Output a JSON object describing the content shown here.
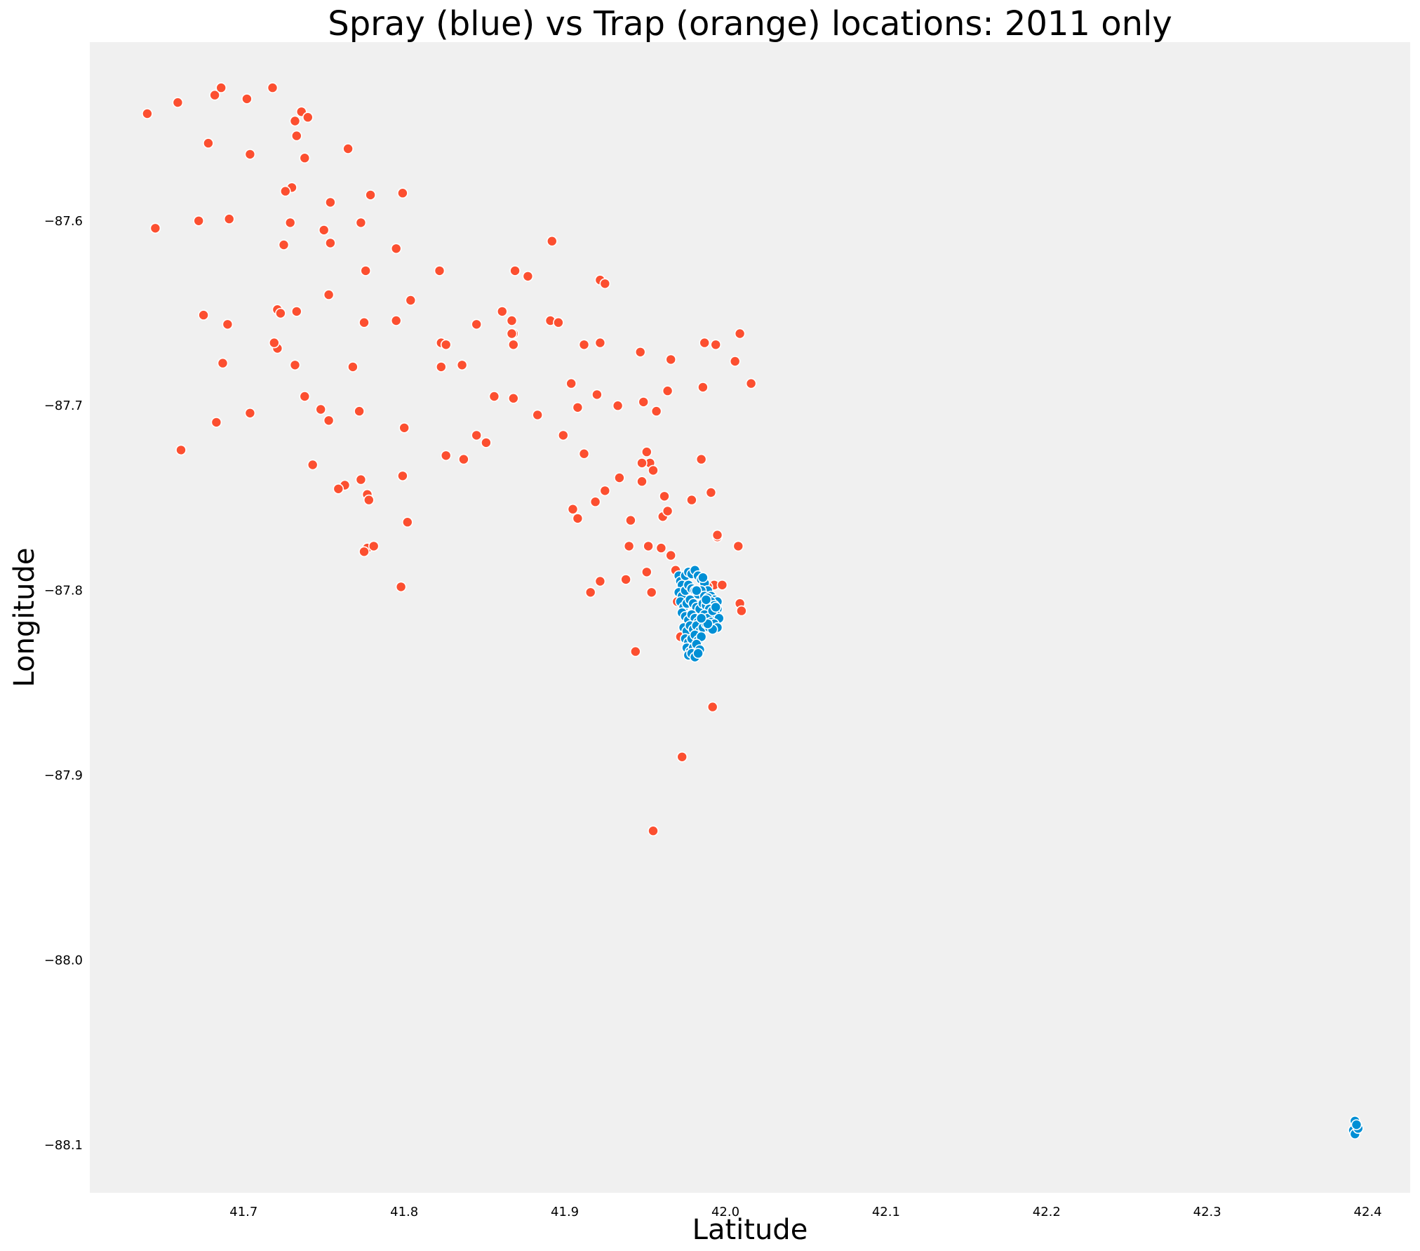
{
  "chart_data": {
    "type": "scatter",
    "title": "Spray (blue) vs Trap (orange) locations: 2011 only",
    "xlabel": "Latitude",
    "ylabel": "Longitude",
    "xlim": [
      41.6042,
      42.4264
    ],
    "ylim": [
      -88.1258,
      -87.5033
    ],
    "x_ticks": [
      41.7,
      41.8,
      41.9,
      42.0,
      42.1,
      42.2,
      42.3,
      42.4
    ],
    "x_tick_labels": [
      "41.7",
      "41.8",
      "41.9",
      "42.0",
      "42.1",
      "42.2",
      "42.3",
      "42.4"
    ],
    "y_ticks": [
      -87.6,
      -87.7,
      -87.8,
      -87.9,
      -88.0,
      -88.1
    ],
    "y_tick_labels": [
      "−87.6",
      "−87.7",
      "−87.8",
      "−87.9",
      "−88.0",
      "−88.1"
    ],
    "grid": false,
    "background": "#f0f0f0",
    "series": [
      {
        "color": "#fc4f30",
        "x": [
          41.64,
          41.659,
          41.682,
          41.686,
          41.702,
          41.718,
          41.736,
          41.74,
          41.732,
          41.678,
          41.733,
          41.704,
          41.738,
          41.765,
          41.73,
          41.726,
          41.779,
          41.799,
          41.754,
          41.645,
          41.672,
          41.691,
          41.729,
          41.773,
          41.75,
          41.725,
          41.754,
          41.795,
          41.776,
          41.822,
          41.869,
          41.877,
          41.892,
          41.922,
          41.925,
          41.753,
          41.804,
          41.675,
          41.721,
          41.733,
          41.69,
          41.723,
          41.775,
          41.795,
          41.861,
          41.867,
          41.891,
          41.896,
          41.845,
          41.868,
          41.721,
          41.719,
          41.687,
          41.732,
          41.768,
          41.823,
          41.826,
          41.823,
          41.836,
          41.868,
          41.867,
          41.912,
          41.922,
          41.947,
          41.966,
          41.987,
          41.994,
          42.009,
          42.006,
          42.016,
          41.738,
          41.748,
          41.772,
          41.753,
          41.8,
          41.683,
          41.704,
          41.661,
          41.743,
          41.799,
          41.763,
          41.759,
          41.773,
          41.777,
          41.826,
          41.837,
          41.845,
          41.851,
          41.856,
          41.868,
          41.883,
          41.899,
          41.904,
          41.908,
          41.92,
          41.933,
          41.912,
          41.949,
          41.957,
          41.964,
          41.986,
          41.778,
          41.777,
          41.802,
          41.781,
          41.775,
          41.798,
          41.951,
          41.953,
          41.948,
          41.955,
          41.934,
          41.948,
          41.925,
          41.919,
          41.905,
          41.908,
          41.941,
          41.961,
          41.964,
          41.979,
          41.962,
          41.991,
          41.985,
          41.94,
          41.952,
          41.96,
          41.966,
          41.969,
          41.951,
          41.938,
          41.922,
          41.916,
          41.954,
          41.97,
          41.993,
          41.995,
          42.008,
          41.995,
          42.009,
          41.989,
          41.998,
          42.01,
          41.972,
          41.981,
          41.973,
          41.944,
          41.992,
          41.973,
          41.955,
          41.995
        ],
        "y": [
          -87.542,
          -87.536,
          -87.532,
          -87.528,
          -87.534,
          -87.528,
          -87.541,
          -87.544,
          -87.546,
          -87.558,
          -87.554,
          -87.564,
          -87.566,
          -87.561,
          -87.582,
          -87.584,
          -87.586,
          -87.585,
          -87.59,
          -87.604,
          -87.6,
          -87.599,
          -87.601,
          -87.601,
          -87.605,
          -87.613,
          -87.612,
          -87.615,
          -87.627,
          -87.627,
          -87.627,
          -87.63,
          -87.611,
          -87.632,
          -87.634,
          -87.64,
          -87.643,
          -87.651,
          -87.648,
          -87.649,
          -87.656,
          -87.65,
          -87.655,
          -87.654,
          -87.649,
          -87.654,
          -87.654,
          -87.655,
          -87.656,
          -87.661,
          -87.669,
          -87.666,
          -87.677,
          -87.678,
          -87.679,
          -87.666,
          -87.667,
          -87.679,
          -87.678,
          -87.667,
          -87.661,
          -87.667,
          -87.666,
          -87.671,
          -87.675,
          -87.666,
          -87.667,
          -87.661,
          -87.676,
          -87.688,
          -87.695,
          -87.702,
          -87.703,
          -87.708,
          -87.712,
          -87.709,
          -87.704,
          -87.724,
          -87.732,
          -87.738,
          -87.743,
          -87.745,
          -87.74,
          -87.748,
          -87.727,
          -87.729,
          -87.716,
          -87.72,
          -87.695,
          -87.696,
          -87.705,
          -87.716,
          -87.688,
          -87.701,
          -87.694,
          -87.7,
          -87.726,
          -87.698,
          -87.703,
          -87.692,
          -87.69,
          -87.751,
          -87.777,
          -87.763,
          -87.776,
          -87.779,
          -87.798,
          -87.725,
          -87.731,
          -87.731,
          -87.735,
          -87.739,
          -87.741,
          -87.746,
          -87.752,
          -87.756,
          -87.761,
          -87.762,
          -87.76,
          -87.757,
          -87.751,
          -87.749,
          -87.747,
          -87.729,
          -87.776,
          -87.776,
          -87.777,
          -87.781,
          -87.789,
          -87.79,
          -87.794,
          -87.795,
          -87.801,
          -87.801,
          -87.806,
          -87.797,
          -87.771,
          -87.776,
          -87.77,
          -87.807,
          -87.798,
          -87.797,
          -87.811,
          -87.825,
          -87.812,
          -87.805,
          -87.833,
          -87.863,
          -87.89,
          -87.93,
          -87.81
        ]
      },
      {
        "color": "#008fd5",
        "x": [
          41.971,
          41.972,
          41.973,
          41.975,
          41.977,
          41.979,
          41.981,
          41.983,
          41.985,
          41.987,
          41.989,
          41.991,
          41.993,
          41.995,
          41.971,
          41.973,
          41.975,
          41.977,
          41.979,
          41.981,
          41.983,
          41.985,
          41.987,
          41.989,
          41.991,
          41.993,
          41.995,
          41.972,
          41.974,
          41.976,
          41.978,
          41.98,
          41.982,
          41.984,
          41.986,
          41.988,
          41.99,
          41.992,
          41.994,
          41.996,
          41.973,
          41.975,
          41.977,
          41.979,
          41.981,
          41.983,
          41.985,
          41.987,
          41.989,
          41.991,
          41.993,
          41.995,
          41.974,
          41.976,
          41.978,
          41.98,
          41.982,
          41.984,
          41.986,
          41.988,
          41.99,
          41.992,
          41.975,
          41.977,
          41.979,
          41.981,
          41.983,
          41.985,
          41.976,
          41.978,
          41.98,
          41.982,
          41.984,
          41.977,
          41.979,
          41.981,
          41.983,
          41.986,
          41.989,
          41.992,
          41.994,
          41.982,
          41.988,
          41.985,
          42.392,
          42.393,
          42.391,
          42.392,
          42.394,
          42.393
        ],
        "y": [
          -87.792,
          -87.795,
          -87.797,
          -87.792,
          -87.79,
          -87.791,
          -87.789,
          -87.792,
          -87.794,
          -87.796,
          -87.8,
          -87.803,
          -87.805,
          -87.806,
          -87.801,
          -87.803,
          -87.8,
          -87.797,
          -87.799,
          -87.8,
          -87.802,
          -87.8,
          -87.803,
          -87.804,
          -87.806,
          -87.808,
          -87.81,
          -87.806,
          -87.809,
          -87.807,
          -87.805,
          -87.807,
          -87.809,
          -87.81,
          -87.807,
          -87.808,
          -87.81,
          -87.812,
          -87.813,
          -87.815,
          -87.812,
          -87.814,
          -87.816,
          -87.813,
          -87.815,
          -87.817,
          -87.815,
          -87.813,
          -87.815,
          -87.817,
          -87.818,
          -87.82,
          -87.82,
          -87.822,
          -87.819,
          -87.821,
          -87.819,
          -87.822,
          -87.82,
          -87.818,
          -87.82,
          -87.821,
          -87.826,
          -87.828,
          -87.826,
          -87.824,
          -87.827,
          -87.825,
          -87.831,
          -87.833,
          -87.831,
          -87.829,
          -87.832,
          -87.835,
          -87.834,
          -87.836,
          -87.834,
          -87.793,
          -87.818,
          -87.811,
          -87.809,
          -87.8,
          -87.805,
          -87.815,
          -88.087,
          -88.09,
          -88.092,
          -88.094,
          -88.091,
          -88.089
        ]
      }
    ]
  }
}
